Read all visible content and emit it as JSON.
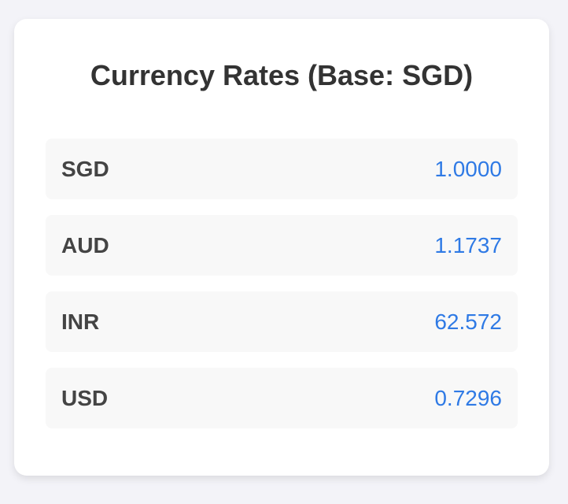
{
  "card": {
    "title": "Currency Rates (Base: SGD)"
  },
  "rates": [
    {
      "code": "SGD",
      "value": "1.0000"
    },
    {
      "code": "AUD",
      "value": "1.1737"
    },
    {
      "code": "INR",
      "value": "62.572"
    },
    {
      "code": "USD",
      "value": "0.7296"
    }
  ],
  "colors": {
    "background": "#f3f3f8",
    "card": "#ffffff",
    "row": "#f8f8f8",
    "code_text": "#444444",
    "value_text": "#2f7ae5",
    "title_text": "#333333"
  }
}
